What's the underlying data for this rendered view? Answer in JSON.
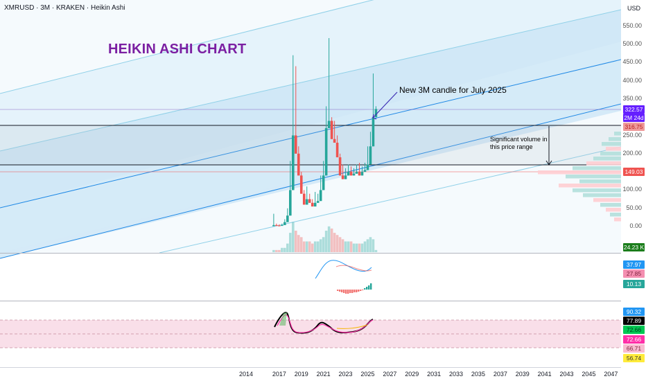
{
  "header": {
    "symbol_line": "XMRUSD · 3M · KRAKEN · Heikin Ashi",
    "chart_title": "HEIKIN ASHI CHART",
    "currency": "USD"
  },
  "annotations": {
    "new_candle": "New 3M candle for July 2025",
    "volume_line1": "Significant volume in",
    "volume_line2": "this price range"
  },
  "price_axis": {
    "ticks": [
      "550.00",
      "500.00",
      "450.00",
      "400.00",
      "350.00",
      "250.00",
      "200.00",
      "150.00",
      "100.00",
      "50.00",
      "0.00"
    ],
    "badges": {
      "current_price": "322.57",
      "countdown": "2M 24d",
      "upper_level": "316.75",
      "lower_level": "149.03",
      "volume": "24.23 K"
    }
  },
  "indicator1": {
    "values": [
      "37.97",
      "27.85",
      "10.13"
    ]
  },
  "indicator2": {
    "values": [
      "90.32",
      "77.89",
      "72.66",
      "72.66",
      "66.71",
      "56.74"
    ]
  },
  "time_axis": {
    "ticks": [
      "2014",
      "2017",
      "2019",
      "2021",
      "2023",
      "2025",
      "2027",
      "2029",
      "2031",
      "2033",
      "2035",
      "2037",
      "2039",
      "2041",
      "2043",
      "2045",
      "2047"
    ]
  },
  "colors": {
    "up": "#26a69a",
    "down": "#ef5350",
    "title": "#7b1fa2",
    "channel_line": "#1e88e5",
    "current_price_badge": "#651fff",
    "level_badge": "#ef5350",
    "volume_badge": "#1b7d1b"
  },
  "chart_data": [
    {
      "type": "candlestick",
      "title": "XMRUSD · 3M · KRAKEN · Heikin Ashi",
      "ylabel": "USD",
      "ylim": [
        -40,
        580
      ],
      "horizontal_levels": [
        316.75,
        149.03
      ],
      "candles": [
        {
          "date": "2016-04",
          "o": 1,
          "h": 35,
          "c": 4,
          "dir": "up"
        },
        {
          "date": "2016-07",
          "o": 4,
          "h": 8,
          "c": 3,
          "dir": "down"
        },
        {
          "date": "2016-10",
          "o": 3,
          "h": 6,
          "c": 2,
          "dir": "down"
        },
        {
          "date": "2017-01",
          "o": 2,
          "h": 8,
          "c": 4,
          "dir": "up"
        },
        {
          "date": "2017-04",
          "o": 4,
          "h": 20,
          "c": 12,
          "dir": "up"
        },
        {
          "date": "2017-07",
          "o": 12,
          "h": 50,
          "c": 30,
          "dir": "up"
        },
        {
          "date": "2017-10",
          "o": 30,
          "h": 180,
          "c": 100,
          "dir": "up"
        },
        {
          "date": "2018-01",
          "o": 100,
          "h": 470,
          "c": 250,
          "dir": "up"
        },
        {
          "date": "2018-04",
          "o": 250,
          "h": 440,
          "c": 200,
          "dir": "down"
        },
        {
          "date": "2018-07",
          "o": 200,
          "h": 220,
          "c": 140,
          "dir": "down"
        },
        {
          "date": "2018-10",
          "o": 140,
          "h": 150,
          "c": 90,
          "dir": "down"
        },
        {
          "date": "2019-01",
          "o": 90,
          "h": 100,
          "c": 60,
          "dir": "down"
        },
        {
          "date": "2019-04",
          "o": 60,
          "h": 110,
          "c": 75,
          "dir": "up"
        },
        {
          "date": "2019-07",
          "o": 75,
          "h": 90,
          "c": 65,
          "dir": "down"
        },
        {
          "date": "2019-10",
          "o": 65,
          "h": 75,
          "c": 55,
          "dir": "down"
        },
        {
          "date": "2020-01",
          "o": 55,
          "h": 95,
          "c": 65,
          "dir": "up"
        },
        {
          "date": "2020-04",
          "o": 65,
          "h": 90,
          "c": 70,
          "dir": "up"
        },
        {
          "date": "2020-07",
          "o": 70,
          "h": 140,
          "c": 100,
          "dir": "up"
        },
        {
          "date": "2020-10",
          "o": 100,
          "h": 180,
          "c": 140,
          "dir": "up"
        },
        {
          "date": "2021-01",
          "o": 140,
          "h": 330,
          "c": 270,
          "dir": "up"
        },
        {
          "date": "2021-04",
          "o": 270,
          "h": 517,
          "c": 290,
          "dir": "up"
        },
        {
          "date": "2021-07",
          "o": 290,
          "h": 300,
          "c": 240,
          "dir": "down"
        },
        {
          "date": "2021-10",
          "o": 240,
          "h": 290,
          "c": 230,
          "dir": "down"
        },
        {
          "date": "2022-01",
          "o": 230,
          "h": 250,
          "c": 190,
          "dir": "down"
        },
        {
          "date": "2022-04",
          "o": 190,
          "h": 200,
          "c": 140,
          "dir": "down"
        },
        {
          "date": "2022-07",
          "o": 140,
          "h": 170,
          "c": 130,
          "dir": "down"
        },
        {
          "date": "2022-10",
          "o": 130,
          "h": 160,
          "c": 140,
          "dir": "up"
        },
        {
          "date": "2023-01",
          "o": 140,
          "h": 170,
          "c": 150,
          "dir": "up"
        },
        {
          "date": "2023-04",
          "o": 150,
          "h": 165,
          "c": 140,
          "dir": "down"
        },
        {
          "date": "2023-07",
          "o": 140,
          "h": 160,
          "c": 145,
          "dir": "up"
        },
        {
          "date": "2023-10",
          "o": 145,
          "h": 170,
          "c": 150,
          "dir": "up"
        },
        {
          "date": "2024-01",
          "o": 150,
          "h": 175,
          "c": 140,
          "dir": "down"
        },
        {
          "date": "2024-04",
          "o": 140,
          "h": 165,
          "c": 150,
          "dir": "up"
        },
        {
          "date": "2024-07",
          "o": 150,
          "h": 175,
          "c": 155,
          "dir": "up"
        },
        {
          "date": "2024-10",
          "o": 155,
          "h": 220,
          "c": 170,
          "dir": "up"
        },
        {
          "date": "2025-01",
          "o": 170,
          "h": 260,
          "c": 220,
          "dir": "up"
        },
        {
          "date": "2025-04",
          "o": 220,
          "h": 420,
          "c": 300,
          "dir": "up"
        },
        {
          "date": "2025-07",
          "o": 300,
          "h": 330,
          "c": 322.57,
          "dir": "up"
        }
      ],
      "volume": [
        1,
        1,
        1,
        2,
        2,
        4,
        9,
        14,
        10,
        8,
        7,
        5,
        5,
        5,
        4,
        5,
        5,
        6,
        7,
        10,
        12,
        11,
        9,
        8,
        7,
        6,
        5,
        5,
        5,
        4,
        4,
        4,
        4,
        5,
        6,
        7,
        6,
        1
      ]
    },
    {
      "type": "line",
      "series": [
        {
          "values": [
            20,
            30,
            45,
            50,
            48,
            42,
            38,
            37.97
          ]
        },
        {
          "values": [
            24,
            30,
            40,
            44,
            44,
            40,
            32,
            27.85
          ]
        }
      ]
    },
    {
      "type": "line",
      "ylim": [
        50,
        95
      ],
      "reference_levels": [
        90.32,
        72.66,
        56.74
      ]
    }
  ]
}
